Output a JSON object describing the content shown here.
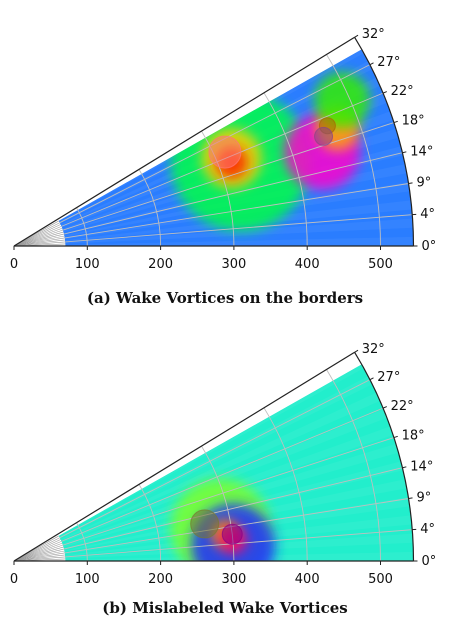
{
  "chart_data": [
    {
      "type": "polar-scatter",
      "caption": "(a) Wake Vortices on the borders",
      "theta_ticks": [
        "0°",
        "4°",
        "9°",
        "14°",
        "18°",
        "22°",
        "27°",
        "32°"
      ],
      "theta_values": [
        0,
        4.5,
        9,
        13.5,
        18,
        22.5,
        27,
        31.5
      ],
      "r_ticks": [
        "0",
        "100",
        "200",
        "300",
        "400",
        "500"
      ],
      "r_values": [
        0,
        100,
        200,
        300,
        400,
        500
      ],
      "r_range": [
        70,
        545
      ],
      "theta_range": [
        0,
        31.5
      ],
      "colormap": "hsv",
      "background_color": "#2a7dff",
      "blobs": [
        {
          "r": 330,
          "theta": 20.5,
          "color": "#00ff44",
          "size": 70
        },
        {
          "r": 320,
          "theta": 22.0,
          "color": "#ffd000",
          "size": 30
        },
        {
          "r": 318,
          "theta": 21.0,
          "color": "#ff2200",
          "size": 16
        },
        {
          "r": 440,
          "theta": 17.0,
          "color": "#ff00cc",
          "size": 38
        },
        {
          "r": 470,
          "theta": 20.0,
          "color": "#ffaa00",
          "size": 22
        },
        {
          "r": 490,
          "theta": 24.0,
          "color": "#33ee00",
          "size": 28
        }
      ],
      "markers": [
        {
          "r": 315,
          "theta": 24.0,
          "color": "#ff7777",
          "size": 16
        },
        {
          "r": 458,
          "theta": 21.0,
          "color": "#aa6600",
          "size": 8
        },
        {
          "r": 448,
          "theta": 19.5,
          "color": "#884488",
          "size": 9
        }
      ]
    },
    {
      "type": "polar-scatter",
      "caption": "(b) Mislabeled Wake Vortices",
      "theta_ticks": [
        "0°",
        "4°",
        "9°",
        "14°",
        "18°",
        "22°",
        "27°",
        "32°"
      ],
      "theta_values": [
        0,
        4.5,
        9,
        13.5,
        18,
        22.5,
        27,
        31.5
      ],
      "r_ticks": [
        "0",
        "100",
        "200",
        "300",
        "400",
        "500"
      ],
      "r_values": [
        0,
        100,
        200,
        300,
        400,
        500
      ],
      "r_range": [
        70,
        545
      ],
      "theta_range": [
        0,
        31.5
      ],
      "colormap": "hsv",
      "background_color": "#22eecc",
      "blobs": [
        {
          "r": 285,
          "theta": 9.0,
          "color": "#7cff2a",
          "size": 50
        },
        {
          "r": 300,
          "theta": 4.0,
          "color": "#1e2bff",
          "size": 42
        },
        {
          "r": 290,
          "theta": 7.5,
          "color": "#ff9900",
          "size": 14
        },
        {
          "r": 300,
          "theta": 5.5,
          "color": "#ff0066",
          "size": 14
        }
      ],
      "markers": [
        {
          "r": 265,
          "theta": 11.0,
          "color": "#777733",
          "size": 14
        },
        {
          "r": 300,
          "theta": 7.0,
          "color": "#880088",
          "size": 10
        }
      ]
    }
  ]
}
